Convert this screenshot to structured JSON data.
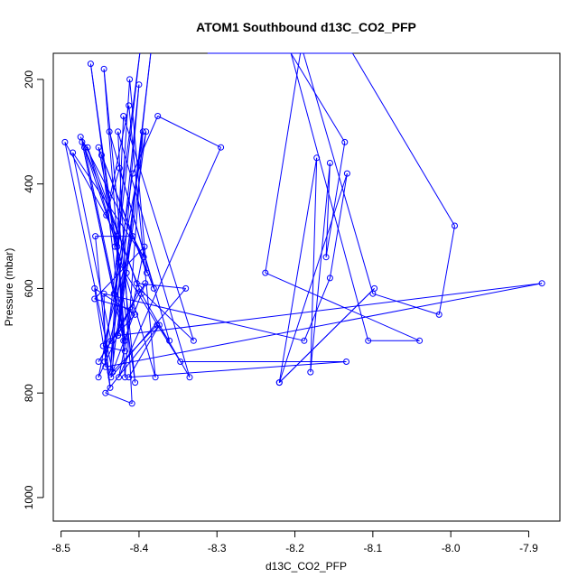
{
  "chart_data": {
    "type": "line",
    "title": "ATOM1 Southbound d13C_CO2_PFP",
    "xlabel": "d13C_CO2_PFP",
    "ylabel": "Pressure (mbar)",
    "xlim": [
      -8.51,
      -7.86
    ],
    "ylim": [
      1045,
      150
    ],
    "y_reversed": true,
    "x_ticks": [
      -8.5,
      -8.4,
      -8.3,
      -8.2,
      -8.1,
      -8.0,
      -7.9
    ],
    "x_tick_labels": [
      "-8.5",
      "-8.4",
      "-8.3",
      "-8.2",
      "-8.1",
      "-8.0",
      "-7.9"
    ],
    "y_ticks": [
      200,
      400,
      600,
      800,
      1000
    ],
    "y_tick_labels": [
      "200",
      "400",
      "600",
      "800",
      "1000"
    ],
    "grid": false,
    "color": "#0000ff",
    "series": [
      {
        "points": [
          [
            -8.438,
            300
          ],
          [
            -8.381,
            600
          ],
          [
            -8.452,
            330
          ],
          [
            -8.428,
            520
          ],
          [
            -8.47,
            330
          ],
          [
            -8.418,
            700
          ],
          [
            -8.445,
            180
          ],
          [
            -8.405,
            780
          ],
          [
            -8.462,
            170
          ],
          [
            -8.431,
            520
          ],
          [
            -8.399,
            150
          ],
          [
            -8.444,
            740
          ],
          [
            -8.416,
            570
          ],
          [
            -8.385,
            150
          ],
          [
            -8.427,
            690
          ],
          [
            -8.4,
            210
          ],
          [
            -8.437,
            760
          ],
          [
            -8.412,
            200
          ],
          [
            -8.39,
            570
          ],
          [
            -8.448,
            345
          ],
          [
            -8.42,
            700
          ],
          [
            -8.473,
            320
          ],
          [
            -8.432,
            610
          ],
          [
            -8.408,
            380
          ],
          [
            -8.376,
            270
          ],
          [
            -8.295,
            330
          ],
          [
            -8.426,
            770
          ],
          [
            -8.393,
            520
          ],
          [
            -8.457,
            620
          ],
          [
            -8.41,
            640
          ],
          [
            -8.452,
            740
          ],
          [
            -8.392,
            590
          ],
          [
            -8.434,
            760
          ],
          [
            -8.377,
            670
          ],
          [
            -8.361,
            700
          ],
          [
            -8.425,
            370
          ],
          [
            -8.442,
            460
          ],
          [
            -8.413,
            250
          ],
          [
            -8.379,
            770
          ],
          [
            -8.466,
            330
          ],
          [
            -8.403,
            590
          ],
          [
            -8.34,
            600
          ],
          [
            -8.436,
            770
          ],
          [
            -8.395,
            300
          ],
          [
            -8.418,
            770
          ],
          [
            -8.426,
            550
          ],
          [
            -8.347,
            740
          ],
          [
            -8.134,
            740
          ],
          [
            -8.413,
            770
          ],
          [
            -8.374,
            670
          ],
          [
            -8.443,
            800
          ],
          [
            -8.409,
            820
          ],
          [
            -8.427,
            300
          ],
          [
            -8.335,
            770
          ],
          [
            -8.397,
            610
          ],
          [
            -8.475,
            310
          ],
          [
            -8.394,
            540
          ],
          [
            -8.485,
            340
          ],
          [
            -8.436,
            700
          ],
          [
            -8.405,
            650
          ],
          [
            -8.457,
            600
          ],
          [
            -8.437,
            790
          ],
          [
            -8.456,
            500
          ],
          [
            -8.408,
            500
          ],
          [
            -8.446,
            710
          ],
          [
            -8.418,
            720
          ],
          [
            -8.428,
            500
          ],
          [
            -8.495,
            320
          ],
          [
            -8.434,
            760
          ],
          [
            -8.42,
            270
          ],
          [
            -8.33,
            700
          ],
          [
            -8.4,
            600
          ],
          [
            -8.452,
            770
          ],
          [
            -8.391,
            300
          ],
          [
            -8.427,
            690
          ],
          [
            -7.883,
            590
          ],
          [
            -8.443,
            750
          ],
          [
            -8.445,
            610
          ],
          [
            -8.188,
            700
          ],
          [
            -8.155,
            580
          ],
          [
            -8.133,
            380
          ],
          [
            -8.22,
            780
          ],
          [
            -8.098,
            600
          ],
          [
            -8.22,
            780
          ],
          [
            -8.172,
            350
          ],
          [
            -8.18,
            760
          ],
          [
            -8.155,
            360
          ],
          [
            -8.16,
            540
          ],
          [
            -8.136,
            320
          ],
          [
            -8.205,
            150
          ],
          [
            -8.106,
            700
          ],
          [
            -8.04,
            700
          ],
          [
            -8.238,
            570
          ],
          [
            -8.193,
            150
          ],
          [
            -8.189,
            150
          ],
          [
            -8.1,
            610
          ],
          [
            -8.015,
            650
          ],
          [
            -7.995,
            480
          ],
          [
            -8.126,
            150
          ],
          [
            -8.242,
            150
          ],
          [
            -8.15,
            150
          ],
          [
            -8.128,
            150
          ],
          [
            -8.21,
            150
          ],
          [
            -8.205,
            150
          ],
          [
            -8.175,
            150
          ],
          [
            -8.142,
            150
          ],
          [
            -8.137,
            150
          ],
          [
            -8.132,
            150
          ],
          [
            -8.295,
            150
          ],
          [
            -8.178,
            150
          ],
          [
            -8.312,
            150
          ],
          [
            -8.293,
            150
          ],
          [
            -8.2,
            150
          ]
        ]
      }
    ]
  }
}
